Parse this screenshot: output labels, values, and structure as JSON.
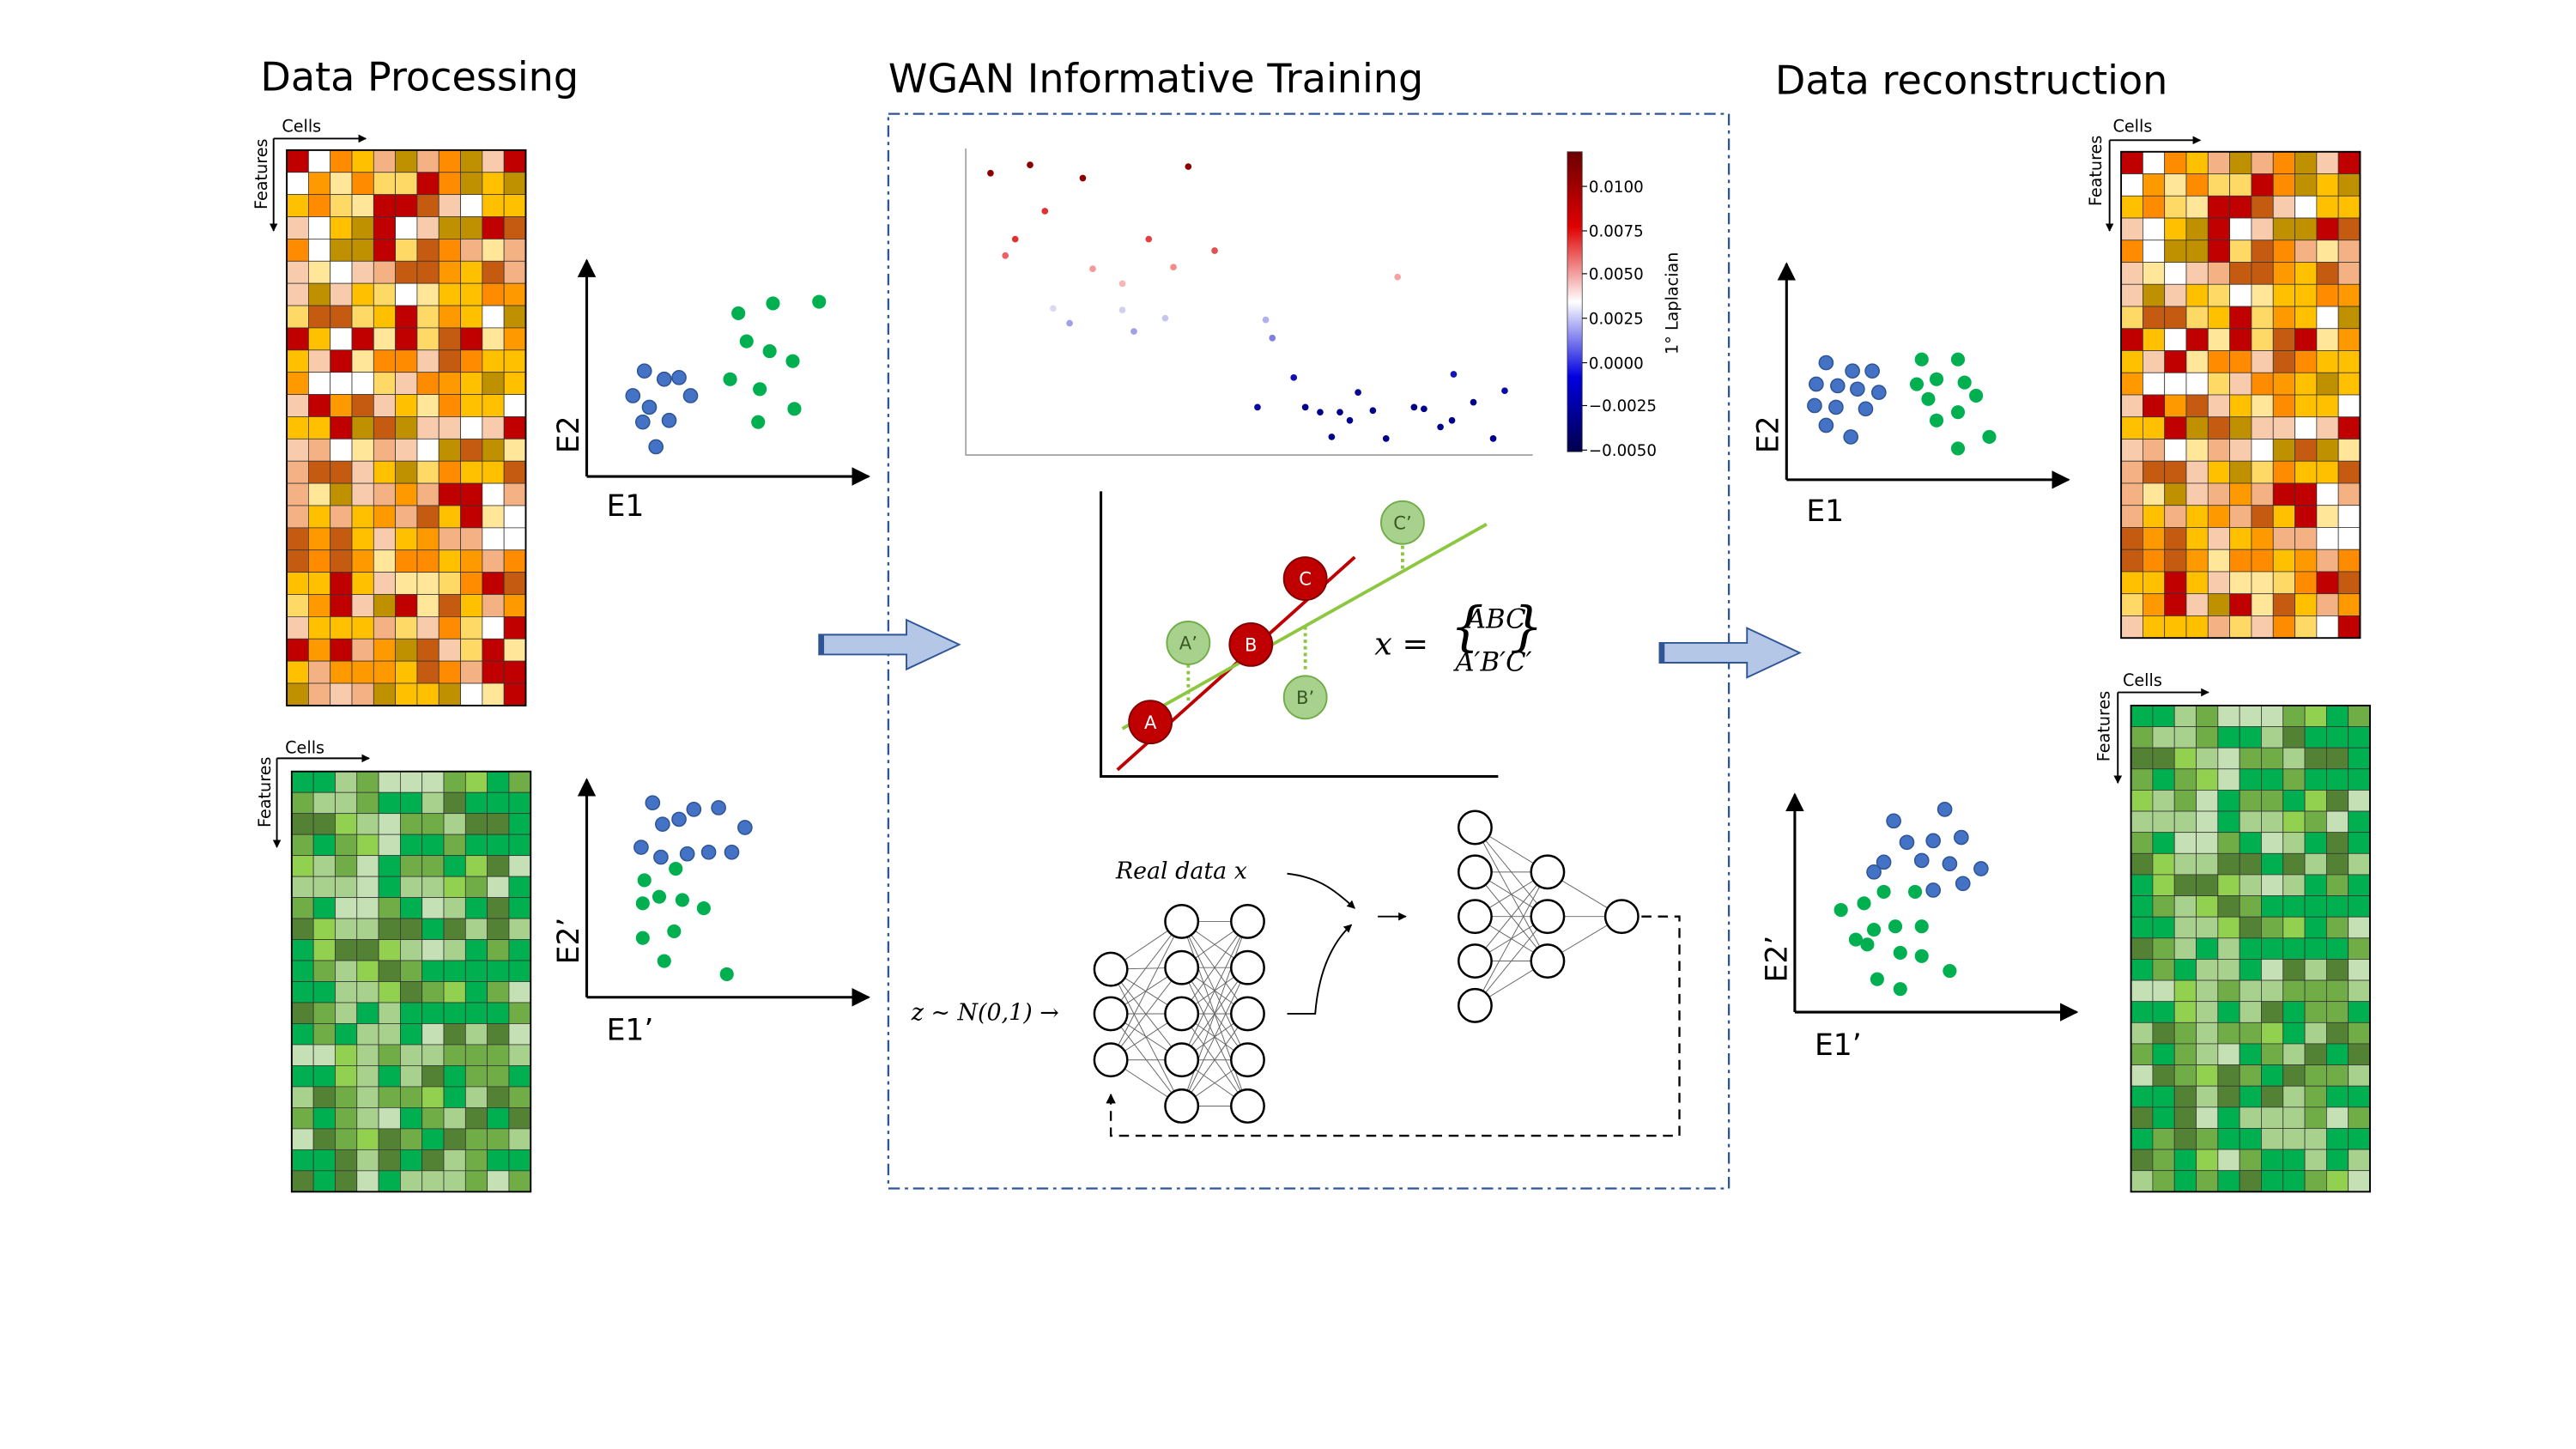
{
  "sections": {
    "processing": "Data Processing",
    "training": "WGAN Informative Training",
    "reconstruction": "Data reconstruction"
  },
  "matrix": {
    "cells": "Cells",
    "features": "Features"
  },
  "axes": {
    "e1": "E1",
    "e2": "E2",
    "e1p": "E1’",
    "e2p": "E2’"
  },
  "colorbar": {
    "label": "1° Laplacian",
    "ticks": [
      "0.0100",
      "0.0075",
      "0.0050",
      "0.0025",
      "0.0000",
      "−0.0025",
      "−0.0050"
    ]
  },
  "lines": {
    "points": [
      "A",
      "B",
      "C",
      "A’",
      "B’",
      "C’"
    ],
    "formula_lhs": "x =",
    "formula_top": "ABC",
    "formula_bottom": "A′B′C′"
  },
  "gan": {
    "real_data": "Real data x",
    "noise": "z ~ N(0,1) →"
  },
  "colors": {
    "blue_dot": "#4472C4",
    "green_dot": "#00B050",
    "red_point": "#C00000",
    "green_point": "#A9D18E",
    "arrow_fill": "#B4C7E7",
    "frame": "#2F5597"
  }
}
